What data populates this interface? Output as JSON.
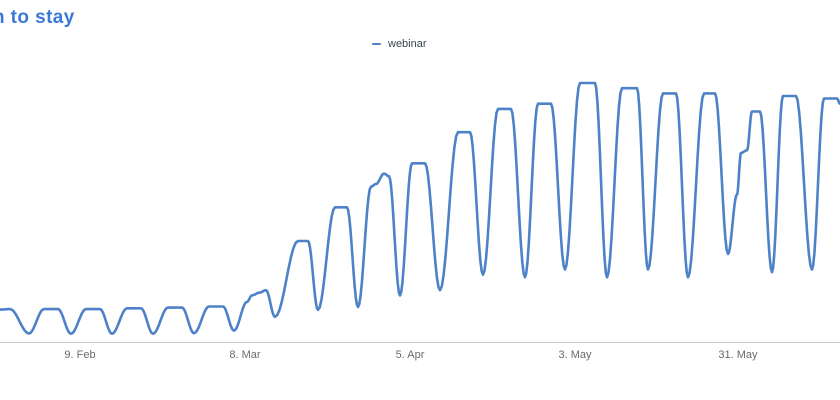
{
  "title": {
    "text": "n to stay",
    "color": "#3c79d7"
  },
  "legend": {
    "items": [
      {
        "label": "webinar",
        "color": "#4d82c8"
      }
    ]
  },
  "chart_data": {
    "type": "line",
    "title": "n to stay",
    "xlabel": "",
    "ylabel": "",
    "ylim": [
      0,
      100
    ],
    "grid": false,
    "legend_position": "top-center",
    "axis_color": "#cccccc",
    "x_ticks": [
      {
        "label": "9. Feb",
        "x": 80
      },
      {
        "label": "8. Mar",
        "x": 245
      },
      {
        "label": "5. Apr",
        "x": 410
      },
      {
        "label": "3. May",
        "x": 575
      },
      {
        "label": "31. May",
        "x": 738
      }
    ],
    "series": [
      {
        "name": "webinar",
        "color": "#4d82c8",
        "points": [
          [
            0,
            12.5
          ],
          [
            10,
            12.7
          ],
          [
            29,
            3.3
          ],
          [
            44,
            12.7
          ],
          [
            58,
            12.7
          ],
          [
            71,
            3.2
          ],
          [
            86,
            12.7
          ],
          [
            100,
            12.7
          ],
          [
            112,
            3.2
          ],
          [
            127,
            13
          ],
          [
            141,
            13
          ],
          [
            153,
            3.2
          ],
          [
            168,
            13.3
          ],
          [
            182,
            13.3
          ],
          [
            194,
            3.4
          ],
          [
            209,
            13.7
          ],
          [
            223,
            13.7
          ],
          [
            234,
            4.4
          ],
          [
            247,
            15.5
          ],
          [
            252,
            18
          ],
          [
            259,
            19
          ],
          [
            266,
            20
          ],
          [
            275,
            9.7
          ],
          [
            298,
            39
          ],
          [
            308,
            39
          ],
          [
            318,
            12.4
          ],
          [
            335,
            52
          ],
          [
            347,
            52
          ],
          [
            358,
            13.5
          ],
          [
            371,
            60
          ],
          [
            376,
            61
          ],
          [
            384,
            65
          ],
          [
            389,
            64
          ],
          [
            400,
            18
          ],
          [
            412,
            69
          ],
          [
            425,
            69
          ],
          [
            440,
            20
          ],
          [
            458,
            81
          ],
          [
            470,
            81
          ],
          [
            483,
            26
          ],
          [
            498,
            90
          ],
          [
            511,
            90
          ],
          [
            525,
            25
          ],
          [
            538,
            92
          ],
          [
            551,
            92
          ],
          [
            565,
            28
          ],
          [
            580,
            100
          ],
          [
            595,
            100
          ],
          [
            607,
            25
          ],
          [
            622,
            98
          ],
          [
            637,
            98
          ],
          [
            648,
            28
          ],
          [
            663,
            96
          ],
          [
            676,
            96
          ],
          [
            688,
            25
          ],
          [
            704,
            96
          ],
          [
            715,
            96
          ],
          [
            728,
            34
          ],
          [
            737,
            57
          ],
          [
            741,
            73
          ],
          [
            747,
            74
          ],
          [
            752,
            89
          ],
          [
            760,
            89
          ],
          [
            772,
            27
          ],
          [
            783,
            95
          ],
          [
            796,
            95
          ],
          [
            812,
            28
          ],
          [
            824,
            94
          ],
          [
            837,
            94
          ],
          [
            840,
            92
          ]
        ]
      }
    ]
  }
}
